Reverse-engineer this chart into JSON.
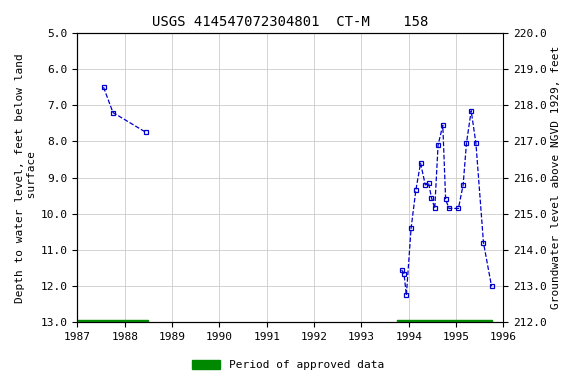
{
  "title": "USGS 414547072304801  CT-M    158",
  "ylabel_left": "Depth to water level, feet below land\n surface",
  "ylabel_right": "Groundwater level above NGVD 1929, feet",
  "xlim": [
    1987,
    1996
  ],
  "ylim_left": [
    13.0,
    5.0
  ],
  "ylim_right": [
    212.0,
    220.0
  ],
  "xticks": [
    1987,
    1988,
    1989,
    1990,
    1991,
    1992,
    1993,
    1994,
    1995,
    1996
  ],
  "yticks_left": [
    5.0,
    6.0,
    7.0,
    8.0,
    9.0,
    10.0,
    11.0,
    12.0,
    13.0
  ],
  "yticks_right": [
    212.0,
    213.0,
    214.0,
    215.0,
    216.0,
    217.0,
    218.0,
    219.0,
    220.0
  ],
  "segments": [
    {
      "x": [
        1987.55,
        1987.75,
        1988.45
      ],
      "y": [
        6.5,
        7.2,
        7.75
      ]
    },
    {
      "x": [
        1993.85,
        1993.9,
        1993.95,
        1994.05,
        1994.15,
        1994.25,
        1994.35,
        1994.42,
        1994.48,
        1994.55,
        1994.62,
        1994.72,
        1994.78,
        1994.85,
        1995.05,
        1995.15,
        1995.22,
        1995.32,
        1995.42,
        1995.58,
        1995.75
      ],
      "y": [
        11.55,
        11.65,
        12.25,
        10.4,
        9.35,
        8.6,
        9.2,
        9.15,
        9.55,
        9.85,
        8.1,
        7.55,
        9.6,
        9.85,
        9.85,
        9.2,
        8.05,
        7.15,
        8.05,
        10.8,
        12.0
      ]
    }
  ],
  "approved_bars": [
    {
      "x_start": 1987.0,
      "x_end": 1988.5,
      "y": 13.0
    },
    {
      "x_start": 1993.75,
      "x_end": 1995.75,
      "y": 13.0
    }
  ],
  "line_color": "#0000CC",
  "marker_color": "#0000CC",
  "approved_color": "#008800",
  "background_color": "#ffffff",
  "plot_bg_color": "#ffffff",
  "grid_color": "#cccccc",
  "title_fontsize": 10,
  "axis_label_fontsize": 8,
  "tick_fontsize": 8,
  "legend_label": "Period of approved data"
}
